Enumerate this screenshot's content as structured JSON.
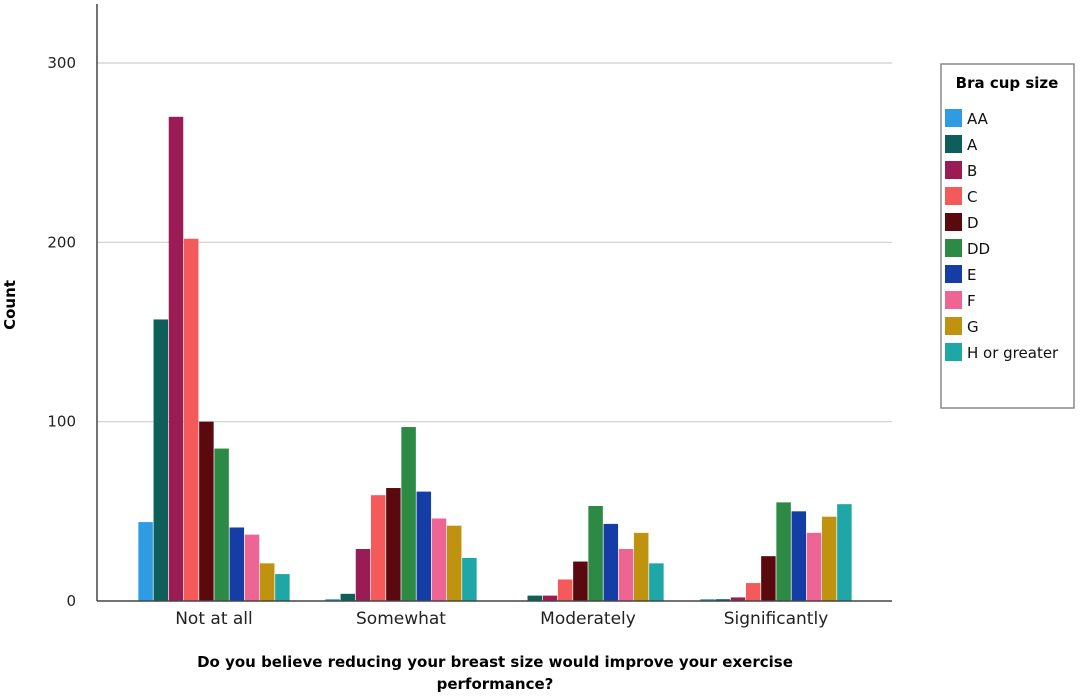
{
  "chart_data": {
    "type": "bar",
    "xlabel_line1": "Do you believe reducing your breast size would improve your exercise",
    "xlabel_line2": "performance?",
    "ylabel": "Count",
    "ylim": [
      0,
      330
    ],
    "yticks": [
      0,
      100,
      200,
      300
    ],
    "grid": true,
    "legend_title": "Bra cup size",
    "legend_position": "right",
    "categories": [
      "Not at all",
      "Somewhat",
      "Moderately",
      "Significantly"
    ],
    "series": [
      {
        "name": "AA",
        "color": "#2E9BE3",
        "values": [
          44,
          1,
          0,
          1
        ]
      },
      {
        "name": "A",
        "color": "#0E5F5A",
        "values": [
          157,
          4,
          3,
          1
        ]
      },
      {
        "name": "B",
        "color": "#9B1C55",
        "values": [
          270,
          29,
          3,
          2
        ]
      },
      {
        "name": "C",
        "color": "#F55A5A",
        "values": [
          202,
          59,
          12,
          10
        ]
      },
      {
        "name": "D",
        "color": "#5A0A0F",
        "values": [
          100,
          63,
          22,
          25
        ]
      },
      {
        "name": "DD",
        "color": "#2C8A45",
        "values": [
          85,
          97,
          53,
          55
        ]
      },
      {
        "name": "E",
        "color": "#143EA6",
        "values": [
          41,
          61,
          43,
          50
        ]
      },
      {
        "name": "F",
        "color": "#EE6492",
        "values": [
          37,
          46,
          29,
          38
        ]
      },
      {
        "name": "G",
        "color": "#BF9210",
        "values": [
          21,
          42,
          38,
          47
        ]
      },
      {
        "name": "H or greater",
        "color": "#1FA6A6",
        "values": [
          15,
          24,
          21,
          54
        ]
      }
    ]
  }
}
